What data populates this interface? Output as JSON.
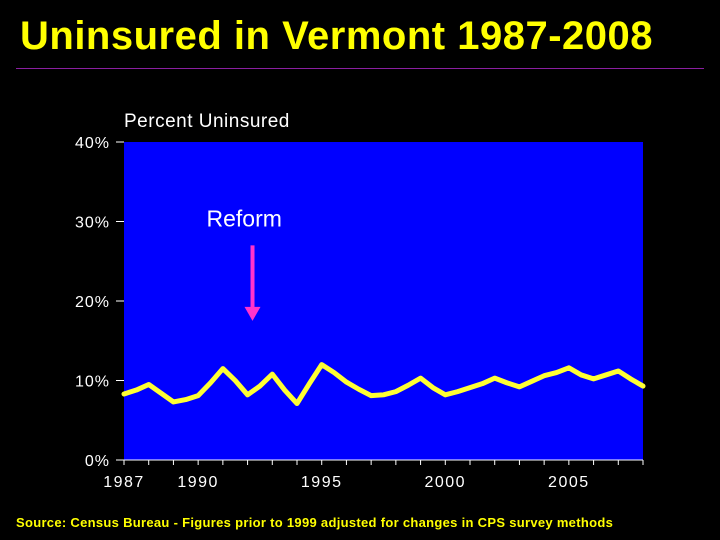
{
  "slide": {
    "title": "Uninsured in Vermont 1987-2008",
    "source": "Source: Census Bureau - Figures prior to 1999 adjusted for changes in CPS survey methods"
  },
  "colors": {
    "background": "#000000",
    "title": "#ffff00",
    "plot_area": "#0000ff",
    "line": "#ffff33",
    "annotation_arrow": "#ff33cc",
    "rule": "#8a1fa0"
  },
  "chart_data": {
    "type": "line",
    "title": "Percent Uninsured",
    "xlabel": "",
    "ylabel": "",
    "xlim": [
      1987,
      2008
    ],
    "ylim": [
      0,
      40
    ],
    "yticks": [
      0,
      10,
      20,
      30,
      40
    ],
    "ytick_labels": [
      "0%",
      "10%",
      "20%",
      "30%",
      "40%"
    ],
    "xticks": [
      1987,
      1990,
      1995,
      2000,
      2005
    ],
    "xtick_labels": [
      "1987",
      "1990",
      "1995",
      "2000",
      "2005"
    ],
    "grid": false,
    "series": [
      {
        "name": "",
        "x": [
          1987,
          1987.5,
          1988,
          1988.5,
          1989,
          1989.5,
          1990,
          1990.5,
          1991,
          1991.5,
          1992,
          1992.5,
          1993,
          1993.5,
          1994,
          1994.5,
          1995,
          1995.5,
          1996,
          1996.5,
          1997,
          1997.5,
          1998,
          1998.5,
          1999,
          1999.5,
          2000,
          2000.5,
          2001,
          2001.5,
          2002,
          2002.5,
          2003,
          2003.5,
          2004,
          2004.5,
          2005,
          2005.5,
          2006,
          2006.5,
          2007,
          2007.5,
          2008
        ],
        "values": [
          8.3,
          8.8,
          9.5,
          8.4,
          7.3,
          7.6,
          8.1,
          9.7,
          11.5,
          10.0,
          8.2,
          9.3,
          10.8,
          8.8,
          7.1,
          9.6,
          12.0,
          11.0,
          9.8,
          8.9,
          8.1,
          8.2,
          8.6,
          9.4,
          10.3,
          9.1,
          8.2,
          8.6,
          9.1,
          9.6,
          10.3,
          9.7,
          9.2,
          9.9,
          10.6,
          11.0,
          11.6,
          10.7,
          10.2,
          10.7,
          11.2,
          10.2,
          9.3
        ]
      }
    ],
    "annotations": [
      {
        "text": "Reform",
        "x": 1992.2,
        "arrow_from_y": 27,
        "arrow_to_y": 17.5
      }
    ]
  }
}
